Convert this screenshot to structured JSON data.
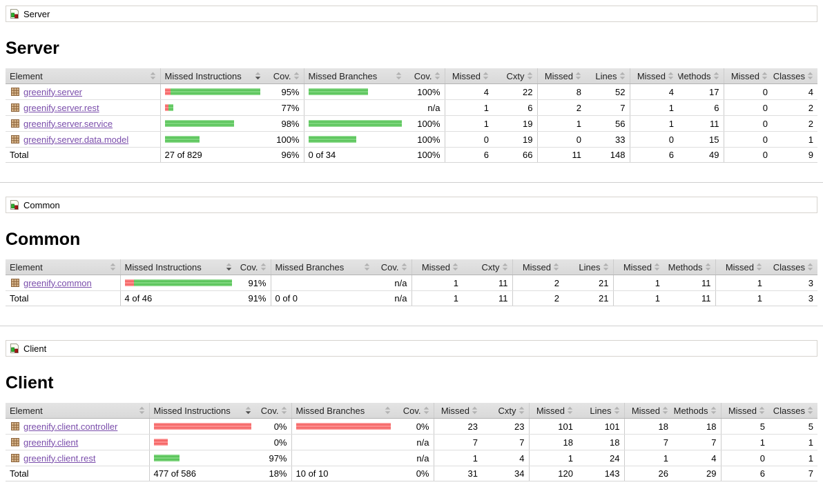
{
  "colors": {
    "bar_green": "#4fbf4f",
    "bar_red": "#f35b5b",
    "link_purple": "#7a4dab",
    "header_bg": "#d9d9d9"
  },
  "sort": {
    "sorted_column": "Missed Instructions",
    "direction": "desc"
  },
  "icons": {
    "breadcrumb_icon": "report-group-icon",
    "row_icon": "package-icon",
    "header_icon": "sort-icon"
  },
  "sections": [
    {
      "id": "server",
      "breadcrumb": "Server",
      "title": "Server",
      "table": {
        "headers": [
          "Element",
          "Missed Instructions",
          "Cov.",
          "Missed Branches",
          "Cov.",
          "Missed",
          "Cxty",
          "Missed",
          "Lines",
          "Missed",
          "Methods",
          "Missed",
          "Classes"
        ],
        "sorted_header_index": 1,
        "rows": [
          {
            "element": "greenify.server",
            "instr_bar": {
              "red": 8,
              "green": 130
            },
            "instr_cov": "95%",
            "branch_bar": {
              "red": 0,
              "green": 86
            },
            "branch_cov": "100%",
            "cells": [
              "4",
              "22",
              "8",
              "52",
              "4",
              "17",
              "0",
              "4"
            ]
          },
          {
            "element": "greenify.server.rest",
            "instr_bar": {
              "red": 5,
              "green": 7
            },
            "instr_cov": "77%",
            "branch_bar": {
              "red": 0,
              "green": 0
            },
            "branch_cov": "n/a",
            "cells": [
              "1",
              "6",
              "2",
              "7",
              "1",
              "6",
              "0",
              "2"
            ]
          },
          {
            "element": "greenify.server.service",
            "instr_bar": {
              "red": 0,
              "green": 100
            },
            "instr_cov": "98%",
            "branch_bar": {
              "red": 0,
              "green": 137
            },
            "branch_cov": "100%",
            "cells": [
              "1",
              "19",
              "1",
              "56",
              "1",
              "11",
              "0",
              "2"
            ]
          },
          {
            "element": "greenify.server.data.model",
            "instr_bar": {
              "red": 0,
              "green": 50
            },
            "instr_cov": "100%",
            "branch_bar": {
              "red": 0,
              "green": 69
            },
            "branch_cov": "100%",
            "cells": [
              "0",
              "19",
              "0",
              "33",
              "0",
              "15",
              "0",
              "1"
            ]
          }
        ],
        "total": {
          "label": "Total",
          "instr_text": "27 of 829",
          "instr_cov": "96%",
          "branch_text": "0 of 34",
          "branch_cov": "100%",
          "cells": [
            "6",
            "66",
            "11",
            "148",
            "6",
            "49",
            "0",
            "9"
          ]
        }
      }
    },
    {
      "id": "common",
      "breadcrumb": "Common",
      "title": "Common",
      "table": {
        "headers": [
          "Element",
          "Missed Instructions",
          "Cov.",
          "Missed Branches",
          "Cov.",
          "Missed",
          "Cxty",
          "Missed",
          "Lines",
          "Missed",
          "Methods",
          "Missed",
          "Classes"
        ],
        "sorted_header_index": 1,
        "rows": [
          {
            "element": "greenify.common",
            "instr_bar": {
              "red": 14,
              "green": 142
            },
            "instr_cov": "91%",
            "branch_bar": {
              "red": 0,
              "green": 0
            },
            "branch_cov": "n/a",
            "cells": [
              "1",
              "11",
              "2",
              "21",
              "1",
              "11",
              "1",
              "3"
            ]
          }
        ],
        "total": {
          "label": "Total",
          "instr_text": "4 of 46",
          "instr_cov": "91%",
          "branch_text": "0 of 0",
          "branch_cov": "n/a",
          "cells": [
            "1",
            "11",
            "2",
            "21",
            "1",
            "11",
            "1",
            "3"
          ]
        }
      }
    },
    {
      "id": "client",
      "breadcrumb": "Client",
      "title": "Client",
      "table": {
        "headers": [
          "Element",
          "Missed Instructions",
          "Cov.",
          "Missed Branches",
          "Cov.",
          "Missed",
          "Cxty",
          "Missed",
          "Lines",
          "Missed",
          "Methods",
          "Missed",
          "Classes"
        ],
        "sorted_header_index": 1,
        "rows": [
          {
            "element": "greenify.client.controller",
            "instr_bar": {
              "red": 146,
              "green": 0
            },
            "instr_cov": "0%",
            "branch_bar": {
              "red": 143,
              "green": 0
            },
            "branch_cov": "0%",
            "cells": [
              "23",
              "23",
              "101",
              "101",
              "18",
              "18",
              "5",
              "5"
            ]
          },
          {
            "element": "greenify.client",
            "instr_bar": {
              "red": 20,
              "green": 0
            },
            "instr_cov": "0%",
            "branch_bar": {
              "red": 0,
              "green": 0
            },
            "branch_cov": "n/a",
            "cells": [
              "7",
              "7",
              "18",
              "18",
              "7",
              "7",
              "1",
              "1"
            ]
          },
          {
            "element": "greenify.client.rest",
            "instr_bar": {
              "red": 0,
              "green": 37
            },
            "instr_cov": "97%",
            "branch_bar": {
              "red": 0,
              "green": 0
            },
            "branch_cov": "n/a",
            "cells": [
              "1",
              "4",
              "1",
              "24",
              "1",
              "4",
              "0",
              "1"
            ]
          }
        ],
        "total": {
          "label": "Total",
          "instr_text": "477 of 586",
          "instr_cov": "18%",
          "branch_text": "10 of 10",
          "branch_cov": "0%",
          "cells": [
            "31",
            "34",
            "120",
            "143",
            "26",
            "29",
            "6",
            "7"
          ]
        }
      }
    }
  ]
}
